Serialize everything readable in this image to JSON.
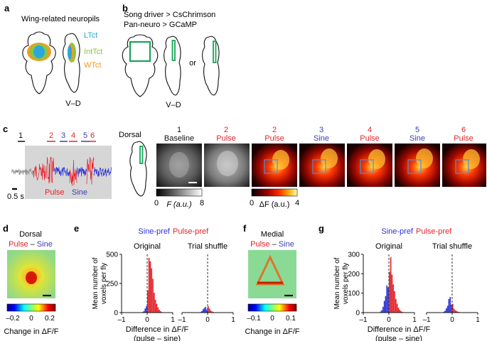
{
  "panels": {
    "a": {
      "label": "a",
      "title": "Wing-related neuropils",
      "legend": [
        {
          "name": "LTct",
          "color": "#2aa7dc"
        },
        {
          "name": "IntTct",
          "color": "#8cc63f"
        },
        {
          "name": "WTct",
          "color": "#f39c21"
        }
      ],
      "axis": "V–D"
    },
    "b": {
      "label": "b",
      "line1": "Song driver > CsChrimson",
      "line2": "Pan-neuro > GCaMP",
      "or": "or",
      "axis": "V–D",
      "roi_color": "#18a558"
    },
    "c": {
      "label": "c",
      "trace_labels": [
        {
          "num": "1",
          "color": "#111111"
        },
        {
          "num": "2",
          "color": "#e8202a"
        },
        {
          "num": "3",
          "color": "#3b3cb3"
        },
        {
          "num": "4",
          "color": "#e8202a"
        },
        {
          "num": "5",
          "color": "#3b3cb3"
        },
        {
          "num": "6",
          "color": "#e8202a"
        }
      ],
      "scalebar": "0.5 s",
      "pulse": "Pulse",
      "sine": "Sine",
      "dorsal": "Dorsal",
      "frames": [
        {
          "num": "1",
          "cond": "Baseline",
          "color": "#111111"
        },
        {
          "num": "2",
          "cond": "Pulse",
          "color": "#e8202a"
        },
        {
          "num": "2",
          "cond": "Pulse",
          "color": "#e8202a"
        },
        {
          "num": "3",
          "cond": "Sine",
          "color": "#3b3cb3"
        },
        {
          "num": "4",
          "cond": "Pulse",
          "color": "#e8202a"
        },
        {
          "num": "5",
          "cond": "Sine",
          "color": "#3b3cb3"
        },
        {
          "num": "6",
          "cond": "Pulse",
          "color": "#e8202a"
        }
      ],
      "cbar_f": {
        "min": "0",
        "max": "8",
        "label": "F (a.u.)"
      },
      "cbar_df": {
        "min": "0",
        "max": "4",
        "label": "ΔF (a.u.)"
      }
    },
    "d": {
      "label": "d",
      "title": "Dorsal",
      "contrast_pulse": "Pulse",
      "contrast_dash": "–",
      "contrast_sine": "Sine",
      "ticks": [
        "–0.2",
        "0",
        "0.2"
      ],
      "cbar_label": "Change in ΔF/F"
    },
    "e": {
      "label": "e"
    },
    "f": {
      "label": "f",
      "title": "Medial",
      "contrast_pulse": "Pulse",
      "contrast_dash": "–",
      "contrast_sine": "Sine",
      "ticks": [
        "–0.1",
        "0",
        "0.1"
      ],
      "cbar_label": "Change in ΔF/F"
    },
    "g": {
      "label": "g"
    }
  },
  "chart_data": [
    {
      "id": "e-original",
      "type": "bar",
      "title": "Original",
      "legend": [
        {
          "name": "Sine-pref",
          "color": "#2d33d6"
        },
        {
          "name": "Pulse-pref",
          "color": "#e3242b"
        }
      ],
      "ylabel": "Mean number of voxels per fly",
      "xlabel": "Difference in ΔF/F (pulse – sine)",
      "xlim": [
        -1,
        1
      ],
      "ylim": [
        0,
        500
      ],
      "xticks": [
        "–1",
        "0",
        "1"
      ],
      "yticks": [
        "0",
        "250",
        "500"
      ],
      "bin_width": 0.05,
      "sine": {
        "x": [
          -0.175,
          -0.125,
          -0.075,
          -0.025
        ],
        "y": [
          5,
          12,
          35,
          55
        ]
      },
      "pulse": {
        "x": [
          0.025,
          0.075,
          0.125,
          0.175,
          0.225,
          0.275,
          0.325,
          0.375,
          0.425,
          0.475,
          0.525,
          0.575
        ],
        "y": [
          190,
          470,
          440,
          380,
          290,
          170,
          110,
          75,
          45,
          25,
          12,
          5
        ]
      }
    },
    {
      "id": "e-shuffle",
      "type": "bar",
      "title": "Trial shuffle",
      "xlim": [
        -1,
        1
      ],
      "ylim": [
        0,
        500
      ],
      "xticks": [
        "–1",
        "0",
        "1"
      ],
      "bin_width": 0.05,
      "sine": {
        "x": [
          -0.275,
          -0.225,
          -0.175,
          -0.125,
          -0.075,
          -0.025
        ],
        "y": [
          5,
          12,
          28,
          40,
          48,
          25
        ]
      },
      "pulse": {
        "x": [
          0.025,
          0.075,
          0.125,
          0.175,
          0.225,
          0.275
        ],
        "y": [
          55,
          35,
          18,
          10,
          6,
          3
        ]
      }
    },
    {
      "id": "g-original",
      "type": "bar",
      "title": "Original",
      "legend": [
        {
          "name": "Sine-pref",
          "color": "#2d33d6"
        },
        {
          "name": "Pulse-pref",
          "color": "#e3242b"
        }
      ],
      "ylabel": "Mean number of voxels per fly",
      "xlabel": "Difference in ΔF/F (pulse – sine)",
      "xlim": [
        -1,
        1
      ],
      "ylim": [
        0,
        300
      ],
      "xticks": [
        "–1",
        "0",
        "1"
      ],
      "yticks": [
        "0",
        "100",
        "200",
        "300"
      ],
      "bin_width": 0.05,
      "sine": {
        "x": [
          -0.325,
          -0.275,
          -0.225,
          -0.175,
          -0.125,
          -0.075,
          -0.025
        ],
        "y": [
          5,
          12,
          30,
          60,
          85,
          140,
          130
        ]
      },
      "pulse": {
        "x": [
          0.025,
          0.075,
          0.125,
          0.175,
          0.225,
          0.275,
          0.325,
          0.375,
          0.425,
          0.475,
          0.525
        ],
        "y": [
          210,
          285,
          195,
          145,
          110,
          70,
          45,
          25,
          15,
          8,
          4
        ]
      }
    },
    {
      "id": "g-shuffle",
      "type": "bar",
      "title": "Trial shuffle",
      "xlim": [
        -1,
        1
      ],
      "ylim": [
        0,
        300
      ],
      "xticks": [
        "–1",
        "0",
        "1"
      ],
      "bin_width": 0.05,
      "sine": {
        "x": [
          -0.325,
          -0.275,
          -0.225,
          -0.175,
          -0.125,
          -0.075,
          -0.025
        ],
        "y": [
          4,
          10,
          22,
          35,
          70,
          80,
          40
        ]
      },
      "pulse": {
        "x": [
          0.025,
          0.075,
          0.125,
          0.175,
          0.225,
          0.275
        ],
        "y": [
          45,
          20,
          12,
          8,
          5,
          3
        ]
      }
    }
  ]
}
